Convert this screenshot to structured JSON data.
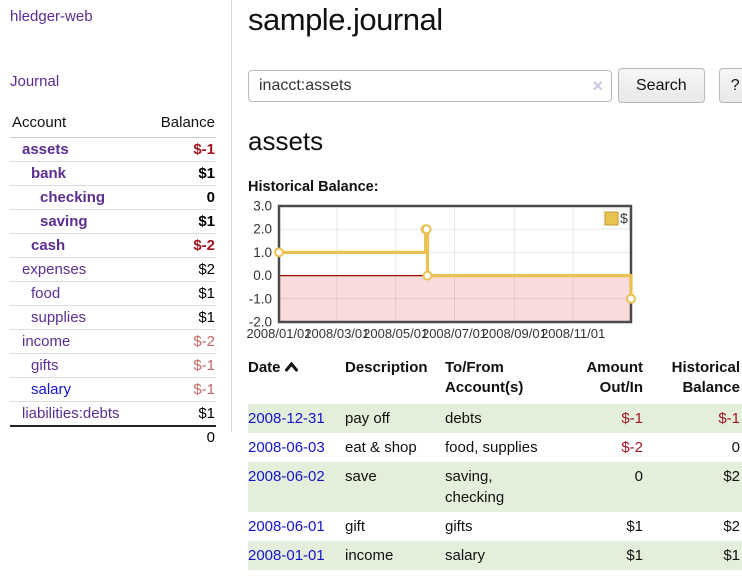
{
  "colors": {
    "link_purple": "#5b2e90",
    "link_blue": "#1414cc",
    "negative_red": "#a11622",
    "negative_light_red": "#c56a6a",
    "stripe_green": "#e3efda",
    "chart_gold": "#e8c352",
    "chart_gold_dark": "#bf9930",
    "chart_pink": "#fadbdb",
    "zero_line_red": "#990000"
  },
  "sidebar": {
    "app_link": "hledger-web",
    "journal_link": "Journal",
    "accounts_table": {
      "account_header": "Account",
      "balance_header": "Balance",
      "rows": [
        {
          "name": "assets",
          "indent": 0,
          "bold": true,
          "balance": "$-1",
          "balance_style": "neg",
          "link_style": "purple"
        },
        {
          "name": "bank",
          "indent": 1,
          "bold": true,
          "balance": "$1",
          "balance_style": "pos",
          "link_style": "purple"
        },
        {
          "name": "checking",
          "indent": 2,
          "bold": true,
          "balance": "0",
          "balance_style": "pos",
          "link_style": "purple"
        },
        {
          "name": "saving",
          "indent": 2,
          "bold": true,
          "balance": "$1",
          "balance_style": "pos",
          "link_style": "purple"
        },
        {
          "name": "cash",
          "indent": 1,
          "bold": true,
          "balance": "$-2",
          "balance_style": "neg",
          "link_style": "purple"
        },
        {
          "name": "expenses",
          "indent": 0,
          "bold": false,
          "balance": "$2",
          "balance_style": "pos",
          "link_style": "purple"
        },
        {
          "name": "food",
          "indent": 1,
          "bold": false,
          "balance": "$1",
          "balance_style": "pos",
          "link_style": "purple"
        },
        {
          "name": "supplies",
          "indent": 1,
          "bold": false,
          "balance": "$1",
          "balance_style": "pos",
          "link_style": "purple"
        },
        {
          "name": "income",
          "indent": 0,
          "bold": false,
          "balance": "$-2",
          "balance_style": "neg-light",
          "link_style": "purple"
        },
        {
          "name": "gifts",
          "indent": 1,
          "bold": false,
          "balance": "$-1",
          "balance_style": "neg-light",
          "link_style": "purple"
        },
        {
          "name": "salary",
          "indent": 1,
          "bold": false,
          "balance": "$-1",
          "balance_style": "neg-light",
          "link_style": "blue"
        },
        {
          "name": "liabilities:debts",
          "indent": 0,
          "bold": false,
          "balance": "$1",
          "balance_style": "pos",
          "link_style": "purple"
        }
      ],
      "total": "0"
    }
  },
  "header": {
    "title": "sample.journal"
  },
  "search": {
    "value": "inacct:assets",
    "clear_icon": "×",
    "button_label": "Search",
    "help_label": "?"
  },
  "account_page": {
    "heading": "assets",
    "chart_label": "Historical Balance:"
  },
  "chart_data": {
    "type": "line",
    "title": "Historical Balance",
    "style": "step-after",
    "legend": [
      {
        "label": "$"
      }
    ],
    "legend_position": "top-right",
    "grid": true,
    "x_start": "2008-01-01",
    "x_end": "2008-12-31",
    "x_ticks": [
      "2008/01/01",
      "2008/03/01",
      "2008/05/01",
      "2008/07/01",
      "2008/09/01",
      "2008/11/01"
    ],
    "y_ticks": [
      "3.0",
      "2.0",
      "1.0",
      "0.0",
      "-1.0",
      "-2.0"
    ],
    "ylim": [
      -2,
      3
    ],
    "negative_region_below": 0,
    "series": [
      {
        "name": "$",
        "points": [
          {
            "date": "2008-01-01",
            "value": 1
          },
          {
            "date": "2008-06-01",
            "value": 2
          },
          {
            "date": "2008-06-02",
            "value": 2
          },
          {
            "date": "2008-06-03",
            "value": 0
          },
          {
            "date": "2008-12-31",
            "value": -1
          }
        ]
      }
    ]
  },
  "register_table": {
    "headers": {
      "date": "Date",
      "description": "Description",
      "accounts": "To/From Account(s)",
      "amount": "Amount Out/In",
      "balance": "Historical Balance"
    },
    "sort": {
      "column": "date",
      "direction": "ascending"
    },
    "rows": [
      {
        "date": "2008-12-31",
        "description": "pay off",
        "accounts": "debts",
        "amount": "$-1",
        "amount_neg": true,
        "balance": "$-1",
        "balance_neg": true
      },
      {
        "date": "2008-06-03",
        "description": "eat & shop",
        "accounts": "food, supplies",
        "amount": "$-2",
        "amount_neg": true,
        "balance": "0",
        "balance_neg": false
      },
      {
        "date": "2008-06-02",
        "description": "save",
        "accounts": "saving, checking",
        "amount": "0",
        "amount_neg": false,
        "balance": "$2",
        "balance_neg": false
      },
      {
        "date": "2008-06-01",
        "description": "gift",
        "accounts": "gifts",
        "amount": "$1",
        "amount_neg": false,
        "balance": "$2",
        "balance_neg": false
      },
      {
        "date": "2008-01-01",
        "description": "income",
        "accounts": "salary",
        "amount": "$1",
        "amount_neg": false,
        "balance": "$1",
        "balance_neg": false
      }
    ]
  }
}
